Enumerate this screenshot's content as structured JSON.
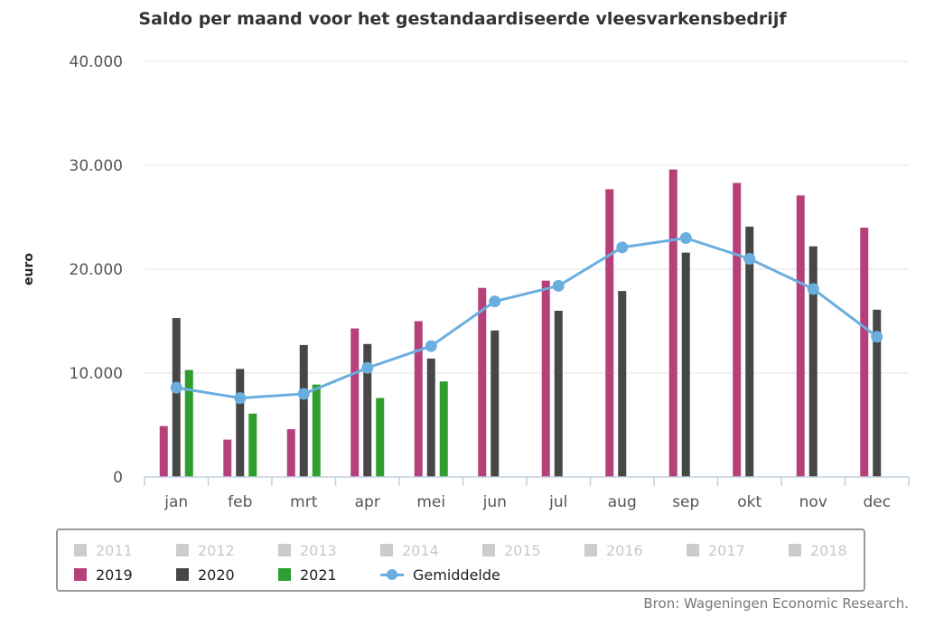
{
  "chart_data": {
    "type": "bar",
    "title": "Saldo per maand voor het gestandaardiseerde vleesvarkensbedrijf",
    "ylabel": "euro",
    "xlabel": "",
    "ylim": [
      0,
      40000
    ],
    "yticks": [
      "0",
      "10.000",
      "20.000",
      "30.000",
      "40.000"
    ],
    "categories": [
      "jan",
      "feb",
      "mrt",
      "apr",
      "mei",
      "jun",
      "jul",
      "aug",
      "sep",
      "okt",
      "nov",
      "dec"
    ],
    "series": [
      {
        "name": "2019",
        "type": "bar",
        "color": "#b5407a",
        "values": [
          4900,
          3600,
          4600,
          14300,
          15000,
          18200,
          18900,
          27700,
          29600,
          28300,
          27100,
          24000
        ]
      },
      {
        "name": "2020",
        "type": "bar",
        "color": "#474747",
        "values": [
          15300,
          10400,
          12700,
          12800,
          11400,
          14100,
          16000,
          17900,
          21600,
          24100,
          22200,
          16100
        ]
      },
      {
        "name": "2021",
        "type": "bar",
        "color": "#2e9e2e",
        "values": [
          10300,
          6100,
          8900,
          7600,
          9200,
          null,
          null,
          null,
          null,
          null,
          null,
          null
        ]
      },
      {
        "name": "Gemiddelde",
        "type": "line",
        "color": "#6aaee0",
        "values": [
          8600,
          7600,
          8000,
          10500,
          12600,
          16900,
          18400,
          22100,
          23000,
          21000,
          18100,
          13500
        ]
      }
    ],
    "legend": {
      "placement": "bottom",
      "inactive": [
        "2011",
        "2012",
        "2013",
        "2014",
        "2015",
        "2016",
        "2017",
        "2018"
      ],
      "active": [
        "2019",
        "2020",
        "2021",
        "Gemiddelde"
      ],
      "inactive_color": "#cccccc"
    },
    "grid": true
  },
  "source": "Bron: Wageningen Economic Research."
}
